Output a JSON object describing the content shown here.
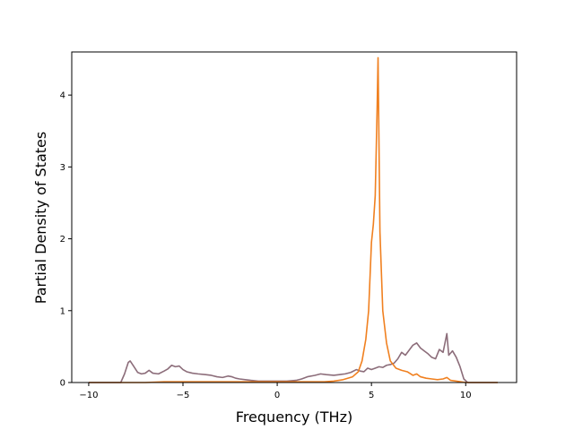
{
  "chart_data": {
    "type": "line",
    "title": "",
    "xlabel": "Frequency (THz)",
    "ylabel": "Partial Density of States",
    "xlim": [
      -10.9,
      12.7
    ],
    "ylim": [
      0,
      4.6
    ],
    "xticks": [
      -10,
      -5,
      0,
      5,
      10
    ],
    "yticks": [
      0,
      1,
      2,
      3,
      4
    ],
    "grid": false,
    "legend": "none",
    "series": [
      {
        "color": "#8c6d7a",
        "x": [
          -10.0,
          -8.3,
          -8.1,
          -7.9,
          -7.8,
          -7.6,
          -7.4,
          -7.2,
          -7.0,
          -6.8,
          -6.6,
          -6.3,
          -6.0,
          -5.8,
          -5.6,
          -5.4,
          -5.2,
          -5.0,
          -4.8,
          -4.5,
          -4.2,
          -3.8,
          -3.5,
          -3.2,
          -2.9,
          -2.6,
          -2.4,
          -2.2,
          -2.0,
          -1.7,
          -1.4,
          -1.0,
          -0.5,
          0.0,
          0.5,
          1.0,
          1.3,
          1.6,
          2.0,
          2.3,
          2.6,
          3.0,
          3.3,
          3.6,
          3.9,
          4.2,
          4.4,
          4.6,
          4.8,
          5.0,
          5.2,
          5.4,
          5.6,
          5.8,
          6.0,
          6.2,
          6.4,
          6.6,
          6.8,
          7.0,
          7.2,
          7.4,
          7.6,
          7.8,
          8.0,
          8.2,
          8.4,
          8.6,
          8.8,
          8.9,
          9.0,
          9.1,
          9.3,
          9.5,
          9.7,
          9.9,
          10.1,
          10.4,
          11.0,
          11.7
        ],
        "y": [
          0.0,
          0.0,
          0.12,
          0.28,
          0.3,
          0.22,
          0.14,
          0.12,
          0.13,
          0.17,
          0.13,
          0.12,
          0.16,
          0.19,
          0.24,
          0.22,
          0.23,
          0.18,
          0.15,
          0.13,
          0.12,
          0.11,
          0.1,
          0.08,
          0.07,
          0.09,
          0.08,
          0.06,
          0.05,
          0.04,
          0.03,
          0.02,
          0.02,
          0.02,
          0.02,
          0.03,
          0.05,
          0.08,
          0.1,
          0.12,
          0.11,
          0.1,
          0.11,
          0.12,
          0.14,
          0.18,
          0.16,
          0.15,
          0.2,
          0.18,
          0.2,
          0.22,
          0.21,
          0.24,
          0.25,
          0.27,
          0.33,
          0.42,
          0.38,
          0.45,
          0.52,
          0.55,
          0.48,
          0.44,
          0.4,
          0.35,
          0.33,
          0.46,
          0.42,
          0.55,
          0.68,
          0.38,
          0.44,
          0.35,
          0.22,
          0.05,
          0.0,
          0.0,
          0.0,
          0.0
        ]
      },
      {
        "color": "#f08020",
        "x": [
          -10.0,
          -8.0,
          -7.0,
          -6.0,
          -5.0,
          -4.0,
          -3.0,
          -2.0,
          -1.0,
          0.0,
          1.0,
          2.0,
          2.5,
          3.0,
          3.5,
          4.0,
          4.3,
          4.5,
          4.7,
          4.85,
          5.0,
          5.1,
          5.2,
          5.3,
          5.35,
          5.45,
          5.6,
          5.8,
          6.0,
          6.3,
          6.6,
          6.9,
          7.2,
          7.4,
          7.6,
          7.9,
          8.2,
          8.5,
          8.8,
          9.0,
          9.2,
          9.5,
          10.0,
          11.7
        ],
        "y": [
          0.0,
          0.0,
          0.0,
          0.01,
          0.01,
          0.01,
          0.01,
          0.01,
          0.01,
          0.01,
          0.01,
          0.01,
          0.01,
          0.02,
          0.04,
          0.08,
          0.15,
          0.3,
          0.6,
          1.0,
          1.95,
          2.2,
          2.6,
          3.8,
          4.52,
          2.1,
          1.0,
          0.55,
          0.3,
          0.2,
          0.17,
          0.15,
          0.1,
          0.12,
          0.08,
          0.06,
          0.05,
          0.04,
          0.05,
          0.07,
          0.03,
          0.02,
          0.0,
          0.0
        ]
      }
    ]
  }
}
